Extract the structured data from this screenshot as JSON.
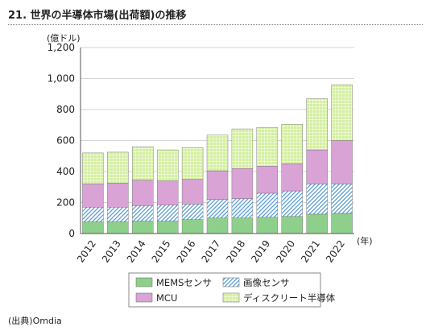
{
  "title": "21. 世界の半導体市場(出荷額)の推移",
  "source": "(出典)Omdia",
  "chart_data": {
    "type": "bar",
    "stacked": true,
    "unit_label": "(億ドル)",
    "x_unit_label": "(年)",
    "categories": [
      "2012",
      "2013",
      "2014",
      "2015",
      "2016",
      "2017",
      "2018",
      "2019",
      "2020",
      "2021",
      "2022"
    ],
    "ylim": [
      0,
      1200
    ],
    "yticks": [
      0,
      200,
      400,
      600,
      800,
      1000,
      1200
    ],
    "ytick_labels": [
      "0",
      "200",
      "400",
      "600",
      "800",
      "1,000",
      "1,200"
    ],
    "grid": true,
    "legend_position": "bottom-center",
    "series": [
      {
        "name": "MEMSセンサ",
        "pattern": "solid",
        "color": "#8fcf8c",
        "values": [
          75,
          75,
          80,
          80,
          90,
          100,
          100,
          105,
          110,
          125,
          130
        ]
      },
      {
        "name": "画像センサ",
        "pattern": "diagonal",
        "color": "#5b9bd5",
        "values": [
          95,
          95,
          100,
          105,
          100,
          120,
          125,
          155,
          165,
          195,
          190
        ]
      },
      {
        "name": "MCU",
        "pattern": "solid",
        "color": "#d9a3d6",
        "values": [
          150,
          155,
          165,
          155,
          160,
          185,
          195,
          175,
          175,
          220,
          280
        ]
      },
      {
        "name": "ディスクリート半導体",
        "pattern": "grid",
        "color": "#d4ef9f",
        "values": [
          200,
          200,
          215,
          200,
          205,
          230,
          255,
          250,
          255,
          330,
          360
        ]
      }
    ]
  }
}
